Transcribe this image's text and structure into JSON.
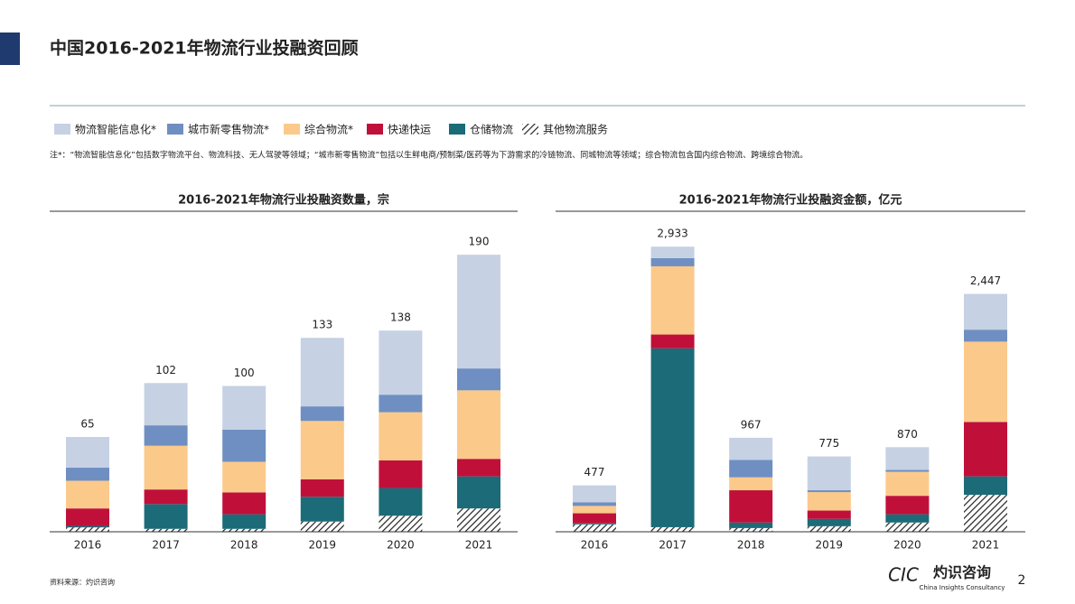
{
  "title": "中国2016-2021年物流行业投融资回顾",
  "note": "注*：“物流智能信息化”包括数字物流平台、物流科技、无人驾驶等领域；“城市新零售物流”包括以生鲜电商/预制菜/医药等为下游需求的冷链物流、同城物流等领域；综合物流包含国内综合物流、跨境综合物流。",
  "source": "资料来源：灼识咨询",
  "page_number": "2",
  "logo": {
    "mark": "CIC",
    "name": "灼识咨询",
    "english": "China Insights Consultancy"
  },
  "chart_data": [
    {
      "type": "stacked_bar",
      "title": "2016-2021年物流行业投融资数量，宗",
      "categories": [
        "2016",
        "2017",
        "2018",
        "2019",
        "2020",
        "2021"
      ],
      "ylim": [
        0,
        200
      ],
      "series": [
        {
          "name": "其他物流服务",
          "color": "#222222",
          "pattern": "hatch",
          "values": [
            3,
            2,
            2,
            7,
            11,
            16
          ]
        },
        {
          "name": "仓储物流",
          "color": "#1b6b78",
          "values": [
            1,
            17,
            10,
            17,
            19,
            22
          ]
        },
        {
          "name": "快递快运",
          "color": "#c0103a",
          "values": [
            12,
            10,
            15,
            12,
            19,
            12
          ]
        },
        {
          "name": "综合物流*",
          "color": "#fbc98a",
          "values": [
            19,
            30,
            21,
            40,
            33,
            47
          ]
        },
        {
          "name": "城市新零售物流*",
          "color": "#6f8fc2",
          "values": [
            9,
            14,
            22,
            10,
            12,
            15
          ]
        },
        {
          "name": "物流智能信息化*",
          "color": "#c6d1e4",
          "values": [
            21,
            29,
            30,
            47,
            44,
            78
          ]
        }
      ],
      "totals": [
        65,
        102,
        100,
        133,
        138,
        190
      ]
    },
    {
      "type": "stacked_bar",
      "title": "2016-2021年物流行业投融资金额，亿元",
      "categories": [
        "2016",
        "2017",
        "2018",
        "2019",
        "2020",
        "2021"
      ],
      "ylim": [
        0,
        3000
      ],
      "series": [
        {
          "values": [
            76,
            47,
            38,
            57,
            95,
            380
          ]
        },
        {
          "values": [
            10,
            1840,
            57,
            76,
            85,
            190
          ]
        },
        {
          "values": [
            104,
            142,
            332,
            85,
            190,
            560
          ]
        },
        {
          "values": [
            76,
            702,
            133,
            190,
            247,
            826
          ]
        },
        {
          "values": [
            38,
            85,
            180,
            19,
            19,
            123
          ]
        },
        {
          "values": [
            173,
            117,
            227,
            348,
            234,
            368
          ]
        }
      ],
      "totals": [
        477,
        2933,
        967,
        775,
        870,
        2447
      ],
      "total_labels": [
        "477",
        "2,933",
        "967",
        "775",
        "870",
        "2,447"
      ]
    }
  ]
}
